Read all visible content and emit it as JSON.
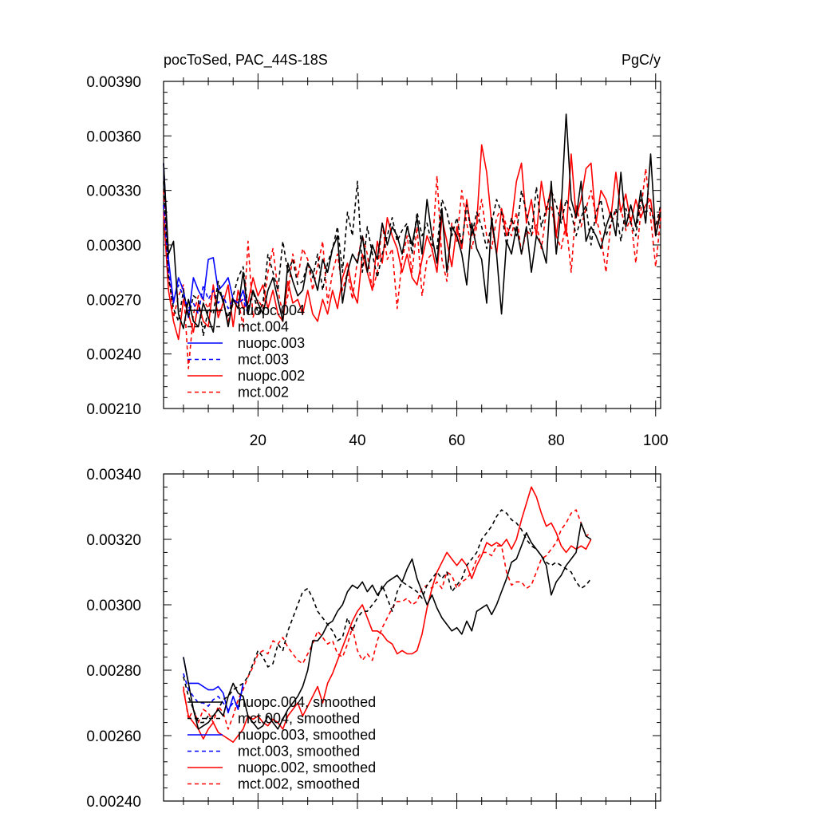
{
  "figure": {
    "left_title": "pocToSed, PAC_44S-18S",
    "right_title": "PgC/y"
  },
  "chart_data": [
    {
      "type": "line",
      "title": "pocToSed, PAC_44S-18S",
      "units": "PgC/y",
      "xlim": [
        1,
        101
      ],
      "ylim": [
        0.0021,
        0.0039
      ],
      "x_ticks": [
        20,
        40,
        60,
        80,
        100
      ],
      "y_ticks": [
        0.0021,
        0.0024,
        0.0027,
        0.003,
        0.0033,
        0.0036,
        0.0039
      ],
      "y_tick_labels": [
        "0.00210",
        "0.00240",
        "0.00270",
        "0.00300",
        "0.00330",
        "0.00360",
        "0.00390"
      ],
      "legend_position": "bottom-left",
      "series": [
        {
          "name": "nuopc.004",
          "color": "#000000",
          "dash": "solid",
          "x_start": 1,
          "values": [
            0.00345,
            0.00295,
            0.00302,
            0.00262,
            0.00254,
            0.0027,
            0.00258,
            0.00255,
            0.00268,
            0.0026,
            0.00252,
            0.00275,
            0.0027,
            0.00255,
            0.0027,
            0.00265,
            0.00285,
            0.00262,
            0.00275,
            0.00268,
            0.00262,
            0.00275,
            0.00282,
            0.0027,
            0.00258,
            0.0029,
            0.0028,
            0.00272,
            0.00275,
            0.0029,
            0.00285,
            0.00275,
            0.00292,
            0.00285,
            0.00298,
            0.00305,
            0.00268,
            0.00285,
            0.00295,
            0.0029,
            0.00305,
            0.00285,
            0.003,
            0.00292,
            0.00312,
            0.003,
            0.0031,
            0.00305,
            0.00295,
            0.0031,
            0.003,
            0.00315,
            0.00295,
            0.00325,
            0.00305,
            0.0029,
            0.0032,
            0.00285,
            0.0031,
            0.00305,
            0.00295,
            0.00278,
            0.00312,
            0.00298,
            0.00292,
            0.00268,
            0.00315,
            0.00295,
            0.00262,
            0.00302,
            0.00295,
            0.0031,
            0.00295,
            0.0031,
            0.00285,
            0.00305,
            0.003,
            0.0029,
            0.00335,
            0.00295,
            0.0032,
            0.00372,
            0.00325,
            0.00315,
            0.00335,
            0.00302,
            0.0031,
            0.00305,
            0.00298,
            0.0031,
            0.00318,
            0.00305,
            0.0034,
            0.0031,
            0.00322,
            0.0031,
            0.0033,
            0.00312,
            0.0035,
            0.00305,
            0.00318
          ]
        },
        {
          "name": "mct.004",
          "color": "#000000",
          "dash": "dashed",
          "x_start": 1,
          "values": [
            0.00335,
            0.00282,
            0.00265,
            0.00258,
            0.00275,
            0.0026,
            0.00272,
            0.0027,
            0.0025,
            0.00265,
            0.00262,
            0.0028,
            0.00268,
            0.0026,
            0.00272,
            0.00282,
            0.00288,
            0.00265,
            0.00275,
            0.00262,
            0.00268,
            0.00295,
            0.00285,
            0.00275,
            0.00302,
            0.00285,
            0.00292,
            0.00278,
            0.0028,
            0.0029,
            0.00282,
            0.00295,
            0.00275,
            0.0029,
            0.00298,
            0.0031,
            0.00285,
            0.00318,
            0.00305,
            0.00335,
            0.00285,
            0.0031,
            0.00295,
            0.00282,
            0.00295,
            0.00305,
            0.00315,
            0.00302,
            0.00308,
            0.00312,
            0.00295,
            0.00318,
            0.00305,
            0.00312,
            0.003,
            0.00298,
            0.00325,
            0.00318,
            0.00305,
            0.00315,
            0.003,
            0.00322,
            0.00305,
            0.00318,
            0.0031,
            0.00298,
            0.00312,
            0.00325,
            0.00318,
            0.003,
            0.00315,
            0.00305,
            0.0033,
            0.00318,
            0.00305,
            0.00332,
            0.0031,
            0.0032,
            0.0033,
            0.00322,
            0.00312,
            0.00325,
            0.00318,
            0.00305,
            0.00315,
            0.00322,
            0.003,
            0.00318,
            0.00325,
            0.00305,
            0.00312,
            0.0032,
            0.00302,
            0.0032,
            0.00312,
            0.00305,
            0.00325,
            0.00318,
            0.0032,
            0.0031,
            0.00322
          ]
        },
        {
          "name": "nuopc.003",
          "color": "#0000ff",
          "dash": "solid",
          "x_start": 1,
          "values": [
            0.00345,
            0.00292,
            0.00268,
            0.00282,
            0.00275,
            0.0026,
            0.00282,
            0.00275,
            0.0027,
            0.00292,
            0.00293,
            0.00275,
            0.00278,
            0.00282,
            0.0027,
            0.00268,
            0.00275,
            0.00263
          ]
        },
        {
          "name": "mct.003",
          "color": "#0000ff",
          "dash": "dashed",
          "x_start": 1,
          "values": [
            0.00322,
            0.00285,
            0.0027,
            0.00278,
            0.00272,
            0.00265,
            0.00268,
            0.00262,
            0.00278,
            0.0027,
            0.00275,
            0.00268,
            0.00272,
            0.00265,
            0.0027,
            0.00268,
            0.0027,
            0.00262
          ]
        },
        {
          "name": "nuopc.002",
          "color": "#ff0000",
          "dash": "solid",
          "x_start": 1,
          "values": [
            0.00318,
            0.00275,
            0.00258,
            0.00248,
            0.0027,
            0.00262,
            0.00252,
            0.00268,
            0.00258,
            0.00255,
            0.00278,
            0.0026,
            0.00268,
            0.00278,
            0.00255,
            0.00275,
            0.00265,
            0.00268,
            0.00282,
            0.00272,
            0.00278,
            0.00265,
            0.00275,
            0.00262,
            0.00258,
            0.0028,
            0.00268,
            0.0027,
            0.00262,
            0.00275,
            0.00262,
            0.00258,
            0.0027,
            0.00262,
            0.00275,
            0.00265,
            0.00282,
            0.0029,
            0.00275,
            0.00268,
            0.00295,
            0.00285,
            0.00275,
            0.00302,
            0.0029,
            0.00315,
            0.00305,
            0.00298,
            0.00285,
            0.00295,
            0.00282,
            0.00278,
            0.00292,
            0.00305,
            0.00298,
            0.00285,
            0.00315,
            0.00302,
            0.00288,
            0.0031,
            0.00298,
            0.00325,
            0.00305,
            0.00312,
            0.00355,
            0.0034,
            0.00312,
            0.00295,
            0.0032,
            0.00305,
            0.00312,
            0.00335,
            0.00345,
            0.00312,
            0.00325,
            0.00305,
            0.00335,
            0.00318,
            0.00332,
            0.00305,
            0.00325,
            0.00305,
            0.0035,
            0.00315,
            0.00325,
            0.00342,
            0.00345,
            0.00312,
            0.0033,
            0.00325,
            0.00315,
            0.0034,
            0.00318,
            0.00328,
            0.00312,
            0.00325,
            0.00315,
            0.00322,
            0.00325,
            0.00305,
            0.0032
          ]
        },
        {
          "name": "mct.002",
          "color": "#ff0000",
          "dash": "dashed",
          "x_start": 1,
          "values": [
            0.0033,
            0.00285,
            0.0026,
            0.00272,
            0.00278,
            0.00232,
            0.00262,
            0.00272,
            0.0027,
            0.00265,
            0.00275,
            0.00262,
            0.00268,
            0.00258,
            0.00268,
            0.0027,
            0.00255,
            0.00302,
            0.0026,
            0.0027,
            0.00265,
            0.00285,
            0.00298,
            0.00275,
            0.00262,
            0.00272,
            0.00295,
            0.00282,
            0.00298,
            0.00292,
            0.00275,
            0.00288,
            0.00302,
            0.00268,
            0.00285,
            0.00295,
            0.00275,
            0.00285,
            0.0027,
            0.00292,
            0.00305,
            0.00295,
            0.00275,
            0.00285,
            0.00312,
            0.00292,
            0.00298,
            0.00265,
            0.00292,
            0.00305,
            0.00285,
            0.0031,
            0.00272,
            0.00292,
            0.00295,
            0.00338,
            0.00292,
            0.0028,
            0.00312,
            0.00302,
            0.0033,
            0.00312,
            0.00298,
            0.0031,
            0.00325,
            0.00305,
            0.00298,
            0.00315,
            0.0032,
            0.0031,
            0.00305,
            0.00318,
            0.00295,
            0.00308,
            0.00305,
            0.00312,
            0.00298,
            0.00318,
            0.00322,
            0.00305,
            0.00298,
            0.00312,
            0.00285,
            0.00322,
            0.0031,
            0.0032,
            0.0033,
            0.00315,
            0.00305,
            0.00285,
            0.00312,
            0.00318,
            0.0032,
            0.00308,
            0.00315,
            0.0029,
            0.00318,
            0.00342,
            0.00315,
            0.00288,
            0.00315
          ]
        }
      ]
    },
    {
      "type": "line",
      "xlim": [
        1,
        101
      ],
      "ylim": [
        0.0024,
        0.0034
      ],
      "x_ticks": [
        20,
        40,
        60,
        80,
        100
      ],
      "y_ticks": [
        0.0024,
        0.0026,
        0.0028,
        0.003,
        0.0032,
        0.0034
      ],
      "y_tick_labels": [
        "0.00240",
        "0.00260",
        "0.00280",
        "0.00300",
        "0.00320",
        "0.00340"
      ],
      "legend_position": "bottom-left",
      "series": [
        {
          "name": "nuopc.004, smoothed",
          "color": "#000000",
          "dash": "solid",
          "x_start": 5,
          "values": [
            0.00284,
            0.00276,
            0.00268,
            0.00262,
            0.00263,
            0.00264,
            0.00266,
            0.00268,
            0.00266,
            0.00272,
            0.00276,
            0.00273,
            0.00272,
            0.00266,
            0.00264,
            0.00262,
            0.00263,
            0.00266,
            0.00264,
            0.00262,
            0.00265,
            0.00268,
            0.0027,
            0.00272,
            0.00275,
            0.0028,
            0.00289,
            0.00289,
            0.00291,
            0.00294,
            0.00295,
            0.00298,
            0.003,
            0.00304,
            0.00306,
            0.00305,
            0.00307,
            0.00304,
            0.00306,
            0.00303,
            0.00305,
            0.00307,
            0.00308,
            0.00309,
            0.00307,
            0.00311,
            0.00314,
            0.00308,
            0.00304,
            0.003,
            0.00303,
            0.00299,
            0.00296,
            0.00294,
            0.00292,
            0.00293,
            0.00291,
            0.00295,
            0.00292,
            0.00298,
            0.00299,
            0.003,
            0.00297,
            0.003,
            0.00304,
            0.00308,
            0.00313,
            0.00314,
            0.00318,
            0.00322,
            0.00319,
            0.00317,
            0.00315,
            0.00312,
            0.00303,
            0.00307,
            0.00309,
            0.00312,
            0.00314,
            0.00316,
            0.00325,
            0.00321,
            0.0032
          ]
        },
        {
          "name": "mct.004, smoothed",
          "color": "#000000",
          "dash": "dashed",
          "x_start": 5,
          "values": [
            0.00278,
            0.00272,
            0.00268,
            0.00264,
            0.00264,
            0.00266,
            0.00266,
            0.00268,
            0.00271,
            0.00272,
            0.00274,
            0.00275,
            0.00276,
            0.00278,
            0.00282,
            0.00286,
            0.00284,
            0.00281,
            0.00282,
            0.00288,
            0.00286,
            0.00292,
            0.00296,
            0.003,
            0.00304,
            0.00305,
            0.00302,
            0.00298,
            0.00296,
            0.00294,
            0.00292,
            0.00289,
            0.0029,
            0.00296,
            0.00292,
            0.00296,
            0.00298,
            0.00298,
            0.003,
            0.00302,
            0.00306,
            0.00302,
            0.00298,
            0.00304,
            0.00307,
            0.00306,
            0.00305,
            0.00304,
            0.00302,
            0.00306,
            0.00308,
            0.0031,
            0.00308,
            0.0031,
            0.00304,
            0.00306,
            0.00308,
            0.00312,
            0.00314,
            0.00316,
            0.0032,
            0.00322,
            0.00324,
            0.00327,
            0.00329,
            0.00328,
            0.00326,
            0.00325,
            0.00323,
            0.0032,
            0.00318,
            0.00317,
            0.00315,
            0.00313,
            0.00312,
            0.00313,
            0.00312,
            0.00311,
            0.0031,
            0.00307,
            0.00305,
            0.00306,
            0.00308
          ]
        },
        {
          "name": "nuopc.003, smoothed",
          "color": "#0000ff",
          "dash": "solid",
          "x_start": 5,
          "values": [
            0.00284,
            0.00276,
            0.00276,
            0.00276,
            0.00275,
            0.00274,
            0.00274,
            0.00275,
            0.00273,
            0.00267,
            0.00272,
            0.00268,
            0.00276
          ]
        },
        {
          "name": "mct.003, smoothed",
          "color": "#0000ff",
          "dash": "dashed",
          "x_start": 5,
          "values": [
            0.00279,
            0.00274,
            0.00272,
            0.0027,
            0.0027,
            0.00269,
            0.00271,
            0.00272,
            0.0027,
            0.00268,
            0.0027,
            0.00269,
            0.00275
          ]
        },
        {
          "name": "nuopc.002, smoothed",
          "color": "#ff0000",
          "dash": "solid",
          "x_start": 5,
          "values": [
            0.00274,
            0.00266,
            0.00264,
            0.00262,
            0.00259,
            0.00262,
            0.00264,
            0.00261,
            0.0026,
            0.00259,
            0.00258,
            0.0026,
            0.00262,
            0.00266,
            0.00265,
            0.00266,
            0.00264,
            0.00263,
            0.00265,
            0.00264,
            0.00262,
            0.00266,
            0.00268,
            0.0027,
            0.00266,
            0.00269,
            0.00272,
            0.00275,
            0.0027,
            0.00276,
            0.00279,
            0.00283,
            0.00287,
            0.00291,
            0.00295,
            0.00298,
            0.003,
            0.00296,
            0.00292,
            0.00292,
            0.00291,
            0.00289,
            0.00288,
            0.00285,
            0.00286,
            0.00285,
            0.00285,
            0.00286,
            0.00291,
            0.00299,
            0.00305,
            0.0031,
            0.00313,
            0.00316,
            0.00314,
            0.00312,
            0.00314,
            0.00312,
            0.00308,
            0.00312,
            0.00315,
            0.00319,
            0.00318,
            0.00319,
            0.00318,
            0.0032,
            0.00317,
            0.0032,
            0.00326,
            0.00331,
            0.00336,
            0.00333,
            0.00328,
            0.00324,
            0.00325,
            0.00322,
            0.00318,
            0.00316,
            0.00318,
            0.00317,
            0.00318,
            0.00317,
            0.0032
          ]
        },
        {
          "name": "mct.002, smoothed",
          "color": "#ff0000",
          "dash": "dashed",
          "x_start": 5,
          "values": [
            0.00275,
            0.00265,
            0.00268,
            0.00264,
            0.00268,
            0.00267,
            0.00264,
            0.00269,
            0.00267,
            0.00262,
            0.00266,
            0.00271,
            0.00274,
            0.00278,
            0.00281,
            0.00285,
            0.00286,
            0.00285,
            0.00289,
            0.00288,
            0.0029,
            0.00287,
            0.00285,
            0.00283,
            0.00282,
            0.00285,
            0.00288,
            0.00292,
            0.0029,
            0.00288,
            0.00289,
            0.00285,
            0.00284,
            0.00288,
            0.00293,
            0.00286,
            0.00283,
            0.00285,
            0.00283,
            0.00289,
            0.00293,
            0.00296,
            0.00299,
            0.00301,
            0.00301,
            0.00302,
            0.003,
            0.00301,
            0.00305,
            0.00306,
            0.00305,
            0.00307,
            0.00305,
            0.0031,
            0.00309,
            0.00305,
            0.00307,
            0.00308,
            0.0031,
            0.00314,
            0.00316,
            0.00316,
            0.00315,
            0.00318,
            0.00318,
            0.0031,
            0.00306,
            0.00307,
            0.00307,
            0.00305,
            0.00306,
            0.0031,
            0.00314,
            0.00315,
            0.00317,
            0.00319,
            0.00323,
            0.00325,
            0.00328,
            0.00329,
            0.00325,
            0.00321,
            0.00322
          ]
        }
      ]
    }
  ]
}
